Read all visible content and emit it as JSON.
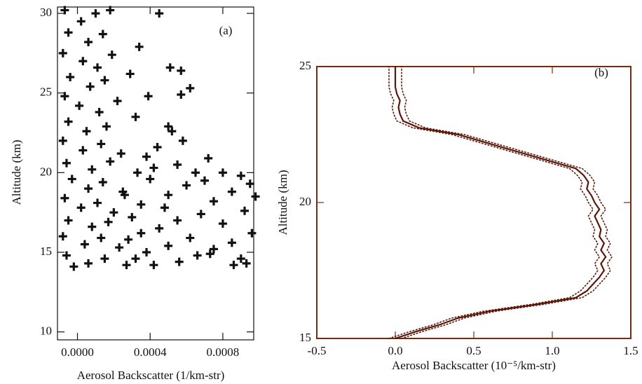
{
  "chart_data": [
    {
      "type": "scatter",
      "annotation": "(a)",
      "ylabel": "Altitude (km)",
      "xlabel": "Aerosol Backscatter (1/km-str)",
      "color": "#111111",
      "marker": "+",
      "xlim": [
        -0.00011,
        0.00097
      ],
      "ylim": [
        9.5,
        30.4
      ],
      "xticks": [
        {
          "value": 0,
          "label": "0.0000"
        },
        {
          "value": 0.0004,
          "label": "0.0004"
        },
        {
          "value": 0.0008,
          "label": "0.0008"
        }
      ],
      "yticks": [
        10,
        15,
        20,
        25,
        30
      ],
      "x": [
        -7e-05,
        2e-05,
        0.0001,
        0.00018,
        -5e-05,
        6e-05,
        0.00014,
        -8e-05,
        3e-05,
        0.00011,
        0.00019,
        -4e-05,
        7e-05,
        0.00015,
        -7e-05,
        1e-05,
        0.00012,
        0.00022,
        -5e-05,
        5e-05,
        0.00016,
        -8e-05,
        3e-05,
        0.00013,
        0.00024,
        -6e-05,
        8e-05,
        0.00018,
        -3e-05,
        6e-05,
        0.00014,
        0.00025,
        -7e-05,
        2e-05,
        0.00011,
        0.0002,
        -5e-05,
        8e-05,
        0.00017,
        -8e-05,
        4e-05,
        0.00013,
        0.00023,
        -6e-05,
        6e-05,
        0.00015,
        -2e-05,
        0.00027,
        0.00045,
        0.00034,
        0.00051,
        0.00057,
        0.00029,
        0.00062,
        0.00057,
        0.00039,
        0.00032,
        0.0005,
        0.00052,
        0.00058,
        0.00044,
        0.00038,
        0.00072,
        0.00065,
        0.00055,
        0.0008,
        0.0009,
        0.00095,
        0.0007,
        0.0006,
        0.00085,
        0.00098,
        0.00075,
        0.0005,
        0.0004,
        0.00035,
        0.00092,
        0.00068,
        0.00055,
        0.0008,
        0.00096,
        0.00045,
        0.0003,
        0.00062,
        0.00085,
        0.00075,
        0.0005,
        0.00038,
        0.0009,
        0.00093,
        0.00066,
        0.00056,
        0.00042,
        0.00032,
        0.00086,
        0.00073,
        0.00028,
        0.00035,
        0.00048,
        0.00026,
        0.00033,
        0.00042
      ],
      "values": [
        30.2,
        29.5,
        30.0,
        30.2,
        28.8,
        28.2,
        28.7,
        27.5,
        27.0,
        26.6,
        27.4,
        26.0,
        25.4,
        25.8,
        24.8,
        24.2,
        23.8,
        24.5,
        23.2,
        22.6,
        22.9,
        22.0,
        21.4,
        21.8,
        21.2,
        20.6,
        20.2,
        20.7,
        19.6,
        19.0,
        19.4,
        18.8,
        18.4,
        17.8,
        18.1,
        17.5,
        17.0,
        16.6,
        16.9,
        16.0,
        15.5,
        15.9,
        15.3,
        14.8,
        14.3,
        14.6,
        14.1,
        14.2,
        30.0,
        27.9,
        26.6,
        26.4,
        26.2,
        25.3,
        24.9,
        24.8,
        23.5,
        22.9,
        22.6,
        22.0,
        21.6,
        21.0,
        20.9,
        20.0,
        20.5,
        20.0,
        19.8,
        19.3,
        19.5,
        19.2,
        18.8,
        18.5,
        18.2,
        18.6,
        19.6,
        18.0,
        17.6,
        17.4,
        17.0,
        16.8,
        16.2,
        16.5,
        17.2,
        15.9,
        15.6,
        15.2,
        15.4,
        15.0,
        14.6,
        14.3,
        14.8,
        14.4,
        14.2,
        14.6,
        14.2,
        14.9,
        15.8,
        16.2,
        17.8,
        18.6,
        20.0,
        20.3
      ]
    },
    {
      "type": "profile",
      "annotation": "(b)",
      "ylabel": "Altitude (km)",
      "xlabel": "Aerosol Backscatter (10⁻⁵/km-str)",
      "axis_color": "#7a2a10",
      "xlim": [
        -0.5,
        1.5
      ],
      "ylim": [
        15,
        25
      ],
      "xticks": [
        -0.5,
        {
          "value": 0,
          "label": "0.0"
        },
        0.5,
        {
          "value": 1,
          "label": "1.0"
        },
        1.5
      ],
      "yticks": [
        15,
        20,
        25
      ],
      "y": [
        15,
        15.25,
        15.5,
        15.75,
        16,
        16.25,
        16.5,
        16.75,
        17,
        17.25,
        17.5,
        17.75,
        18,
        18.25,
        18.5,
        18.75,
        19,
        19.25,
        19.5,
        19.75,
        20,
        20.25,
        20.5,
        20.75,
        21,
        21.25,
        21.5,
        21.75,
        22,
        22.25,
        22.5,
        22.75,
        23,
        23.25,
        23.5,
        23.75,
        24,
        24.25,
        24.5,
        24.75,
        25
      ],
      "series": [
        {
          "color": "#5a1608",
          "linestyle": "solid",
          "values": [
            0.0,
            0.13,
            0.28,
            0.4,
            0.6,
            0.9,
            1.15,
            1.22,
            1.26,
            1.3,
            1.33,
            1.31,
            1.34,
            1.31,
            1.33,
            1.3,
            1.31,
            1.29,
            1.27,
            1.3,
            1.27,
            1.25,
            1.22,
            1.23,
            1.2,
            1.15,
            1.0,
            0.85,
            0.7,
            0.55,
            0.4,
            0.15,
            0.05,
            0.03,
            0.02,
            0.03,
            0.01,
            0.0,
            0.0,
            0.0,
            0.0
          ]
        },
        {
          "color": "#5a1608",
          "linestyle": "dotted",
          "values": [
            -0.04,
            0.09,
            0.24,
            0.36,
            0.56,
            0.86,
            1.11,
            1.18,
            1.22,
            1.26,
            1.29,
            1.27,
            1.3,
            1.27,
            1.29,
            1.26,
            1.27,
            1.25,
            1.23,
            1.26,
            1.23,
            1.21,
            1.18,
            1.19,
            1.16,
            1.11,
            0.96,
            0.81,
            0.66,
            0.51,
            0.36,
            0.11,
            0.01,
            -0.01,
            -0.02,
            -0.01,
            -0.03,
            -0.04,
            -0.04,
            -0.04,
            -0.04
          ]
        },
        {
          "color": "#5a1608",
          "linestyle": "dotted",
          "values": [
            0.04,
            0.17,
            0.32,
            0.44,
            0.64,
            0.94,
            1.19,
            1.26,
            1.3,
            1.34,
            1.37,
            1.35,
            1.38,
            1.35,
            1.37,
            1.34,
            1.35,
            1.33,
            1.31,
            1.34,
            1.31,
            1.29,
            1.26,
            1.27,
            1.24,
            1.19,
            1.04,
            0.89,
            0.74,
            0.59,
            0.44,
            0.19,
            0.09,
            0.07,
            0.06,
            0.07,
            0.05,
            0.04,
            0.04,
            0.04,
            0.04
          ]
        }
      ]
    }
  ]
}
